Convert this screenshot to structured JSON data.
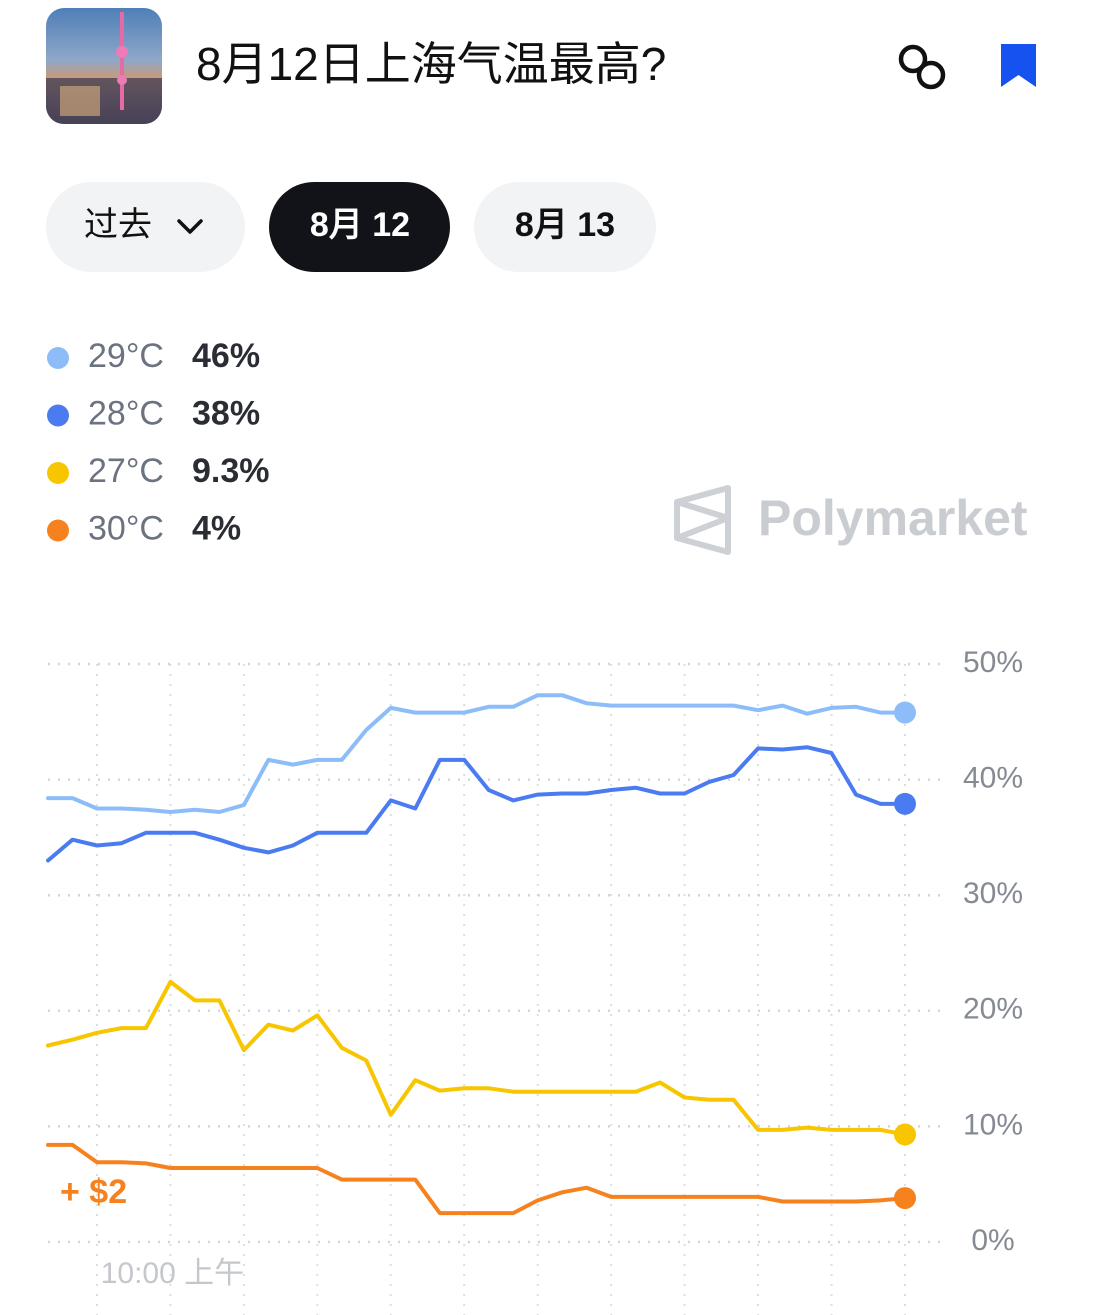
{
  "header": {
    "title": "8月12日上海气温最高?"
  },
  "tabs": [
    "过去",
    "8月 12",
    "8月 13"
  ],
  "watermark": "Polymarket",
  "chart_data": {
    "type": "line",
    "categories": [
      null,
      null,
      null,
      null,
      null,
      "10:00 上午",
      null,
      null,
      null,
      null,
      null,
      null,
      null,
      null,
      null,
      null,
      null,
      null,
      null,
      null,
      null,
      null,
      null,
      null,
      null,
      null,
      null,
      null,
      null,
      null,
      null,
      null,
      null,
      null,
      null,
      null
    ],
    "series": [
      {
        "name": "29°C",
        "current_label": "46%",
        "color": "#8dbdf8",
        "values": [
          38.4,
          38.4,
          37.5,
          37.5,
          37.4,
          37.2,
          37.4,
          37.2,
          37.8,
          41.7,
          41.3,
          41.7,
          41.7,
          44.3,
          46.2,
          45.8,
          45.8,
          45.8,
          46.3,
          46.3,
          47.3,
          47.3,
          46.6,
          46.4,
          46.4,
          46.4,
          46.4,
          46.4,
          46.4,
          46.0,
          46.4,
          45.7,
          46.2,
          46.3,
          45.8,
          45.8
        ]
      },
      {
        "name": "28°C",
        "current_label": "38%",
        "color": "#4a7bf0",
        "values": [
          33.0,
          34.8,
          34.3,
          34.5,
          35.4,
          35.4,
          35.4,
          34.8,
          34.1,
          33.7,
          34.3,
          35.4,
          35.4,
          35.4,
          38.2,
          37.5,
          41.7,
          41.7,
          39.1,
          38.2,
          38.7,
          38.8,
          38.8,
          39.1,
          39.3,
          38.8,
          38.8,
          39.8,
          40.4,
          42.7,
          42.6,
          42.8,
          42.3,
          38.7,
          37.9,
          37.9
        ]
      },
      {
        "name": "27°C",
        "current_label": "9.3%",
        "color": "#f7c600",
        "values": [
          17.0,
          17.5,
          18.1,
          18.5,
          18.5,
          22.5,
          20.9,
          20.9,
          16.6,
          18.8,
          18.3,
          19.6,
          16.8,
          15.7,
          11.0,
          14.0,
          13.1,
          13.3,
          13.3,
          13.0,
          13.0,
          13.0,
          13.0,
          13.0,
          13.0,
          13.8,
          12.5,
          12.3,
          12.3,
          9.7,
          9.7,
          9.9,
          9.7,
          9.7,
          9.7,
          9.3
        ]
      },
      {
        "name": "30°C",
        "current_label": "4%",
        "color": "#f6821f",
        "values": [
          8.4,
          8.4,
          6.9,
          6.9,
          6.8,
          6.4,
          6.4,
          6.4,
          6.4,
          6.4,
          6.4,
          6.4,
          5.4,
          5.4,
          5.4,
          5.4,
          2.5,
          2.5,
          2.5,
          2.5,
          3.6,
          4.3,
          4.7,
          3.9,
          3.9,
          3.9,
          3.9,
          3.9,
          3.9,
          3.9,
          3.5,
          3.5,
          3.5,
          3.5,
          3.6,
          3.8
        ]
      }
    ],
    "annotation": "+ $2",
    "ylim": [
      0,
      50
    ],
    "yticks": [
      {
        "value": 0,
        "label": "0%"
      },
      {
        "value": 10,
        "label": "10%"
      },
      {
        "value": 20,
        "label": "20%"
      },
      {
        "value": 30,
        "label": "30%"
      },
      {
        "value": 40,
        "label": "40%"
      },
      {
        "value": 50,
        "label": "50%"
      }
    ],
    "grid": true
  }
}
